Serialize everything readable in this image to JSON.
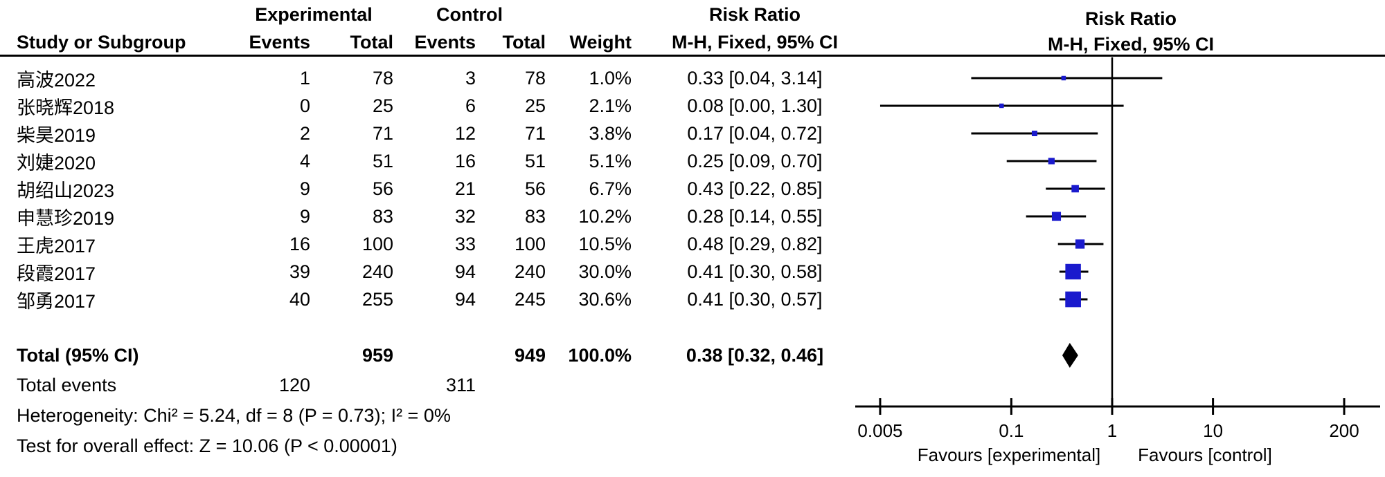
{
  "columns": {
    "study": "Study or Subgroup",
    "group_experimental": "Experimental",
    "group_control": "Control",
    "events": "Events",
    "total": "Total",
    "weight": "Weight",
    "effect_title": "Risk Ratio",
    "effect_subtitle": "M-H, Fixed, 95% CI"
  },
  "colors": {
    "square": "#1A1ACD",
    "diamond": "#000000",
    "axis": "#000000",
    "text": "#000000"
  },
  "chart_data": {
    "type": "forest",
    "effect_measure": "Risk Ratio",
    "method": "M-H, Fixed, 95% CI",
    "x_scale": "log",
    "x_ticks": [
      "0.005",
      "0.1",
      "1",
      "10",
      "200"
    ],
    "x_range": [
      0.005,
      200
    ],
    "null_line": 1,
    "favours_left": "Favours [experimental]",
    "favours_right": "Favours [control]",
    "studies": [
      {
        "name": "高波2022",
        "exp_events": "1",
        "exp_total": "78",
        "ctl_events": "3",
        "ctl_total": "78",
        "weight": "1.0%",
        "weight_pct": 1.0,
        "ci_text": "0.33 [0.04, 3.14]",
        "rr": 0.33,
        "ci_low": 0.04,
        "ci_high": 3.14
      },
      {
        "name": "张晓辉2018",
        "exp_events": "0",
        "exp_total": "25",
        "ctl_events": "6",
        "ctl_total": "25",
        "weight": "2.1%",
        "weight_pct": 2.1,
        "ci_text": "0.08 [0.00, 1.30]",
        "rr": 0.08,
        "ci_low": 0.0,
        "ci_high": 1.3
      },
      {
        "name": "柴昊2019",
        "exp_events": "2",
        "exp_total": "71",
        "ctl_events": "12",
        "ctl_total": "71",
        "weight": "3.8%",
        "weight_pct": 3.8,
        "ci_text": "0.17 [0.04, 0.72]",
        "rr": 0.17,
        "ci_low": 0.04,
        "ci_high": 0.72
      },
      {
        "name": "刘婕2020",
        "exp_events": "4",
        "exp_total": "51",
        "ctl_events": "16",
        "ctl_total": "51",
        "weight": "5.1%",
        "weight_pct": 5.1,
        "ci_text": "0.25 [0.09, 0.70]",
        "rr": 0.25,
        "ci_low": 0.09,
        "ci_high": 0.7
      },
      {
        "name": "胡绍山2023",
        "exp_events": "9",
        "exp_total": "56",
        "ctl_events": "21",
        "ctl_total": "56",
        "weight": "6.7%",
        "weight_pct": 6.7,
        "ci_text": "0.43 [0.22, 0.85]",
        "rr": 0.43,
        "ci_low": 0.22,
        "ci_high": 0.85
      },
      {
        "name": "申慧珍2019",
        "exp_events": "9",
        "exp_total": "83",
        "ctl_events": "32",
        "ctl_total": "83",
        "weight": "10.2%",
        "weight_pct": 10.2,
        "ci_text": "0.28 [0.14, 0.55]",
        "rr": 0.28,
        "ci_low": 0.14,
        "ci_high": 0.55
      },
      {
        "name": "王虎2017",
        "exp_events": "16",
        "exp_total": "100",
        "ctl_events": "33",
        "ctl_total": "100",
        "weight": "10.5%",
        "weight_pct": 10.5,
        "ci_text": "0.48 [0.29, 0.82]",
        "rr": 0.48,
        "ci_low": 0.29,
        "ci_high": 0.82
      },
      {
        "name": "段霞2017",
        "exp_events": "39",
        "exp_total": "240",
        "ctl_events": "94",
        "ctl_total": "240",
        "weight": "30.0%",
        "weight_pct": 30.0,
        "ci_text": "0.41 [0.30, 0.58]",
        "rr": 0.41,
        "ci_low": 0.3,
        "ci_high": 0.58
      },
      {
        "name": "邹勇2017",
        "exp_events": "40",
        "exp_total": "255",
        "ctl_events": "94",
        "ctl_total": "245",
        "weight": "30.6%",
        "weight_pct": 30.6,
        "ci_text": "0.41 [0.30, 0.57]",
        "rr": 0.41,
        "ci_low": 0.3,
        "ci_high": 0.57
      }
    ],
    "total": {
      "label": "Total (95% CI)",
      "exp_total": "959",
      "ctl_total": "949",
      "weight": "100.0%",
      "ci_text": "0.38 [0.32, 0.46]",
      "rr": 0.38,
      "ci_low": 0.32,
      "ci_high": 0.46
    },
    "total_events": {
      "label": "Total events",
      "experimental": "120",
      "control": "311"
    },
    "heterogeneity": "Heterogeneity: Chi² = 5.24, df = 8 (P = 0.73); I² = 0%",
    "overall_effect": "Test for overall effect: Z = 10.06 (P < 0.00001)"
  }
}
